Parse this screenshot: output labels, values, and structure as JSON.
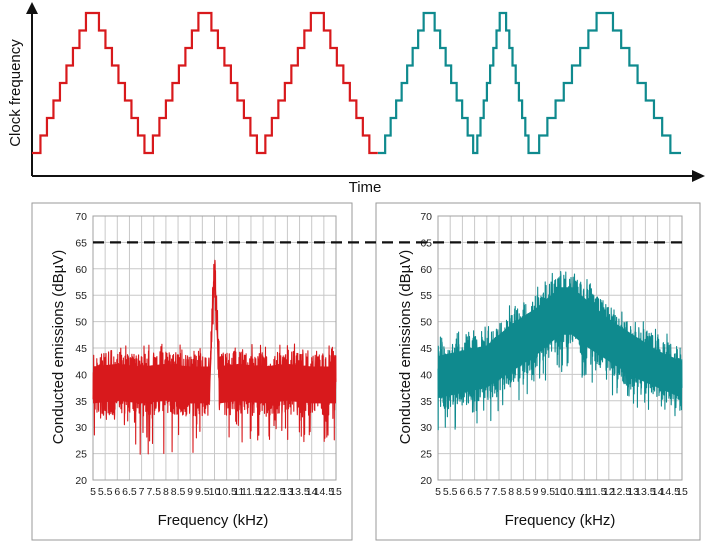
{
  "top_panel": {
    "ylabel": "Clock frequency",
    "xlabel": "Time",
    "fixed_color": "#d8191c",
    "spread_color": "#0f8a8e",
    "axis_color": "#111111"
  },
  "threshold": {
    "value": 65,
    "color": "#111111"
  },
  "chart_data": [
    {
      "type": "line",
      "title": "",
      "xlabel": "Frequency (kHz)",
      "ylabel": "Conducted emissions (dBµV)",
      "xlim": [
        5,
        15
      ],
      "ylim": [
        20,
        70
      ],
      "x_ticks": [
        "5",
        "5.5",
        "6",
        "6.5",
        "7",
        "7.5",
        "8",
        "8.5",
        "9",
        "9.5",
        "10",
        "10.5",
        "11",
        "11.5",
        "12",
        "12.5",
        "13",
        "13.5",
        "14",
        "14.5",
        "15"
      ],
      "y_ticks": [
        "20",
        "25",
        "30",
        "35",
        "40",
        "45",
        "50",
        "55",
        "60",
        "65",
        "70"
      ],
      "grid": true,
      "series": [
        {
          "color": "#d8191c",
          "envelope": {
            "x": [
              5,
              6,
              7,
              8,
              9,
              9.8,
              9.9,
              10,
              10.1,
              10.2,
              11,
              12,
              13,
              14,
              15
            ],
            "upper": [
              44,
              44.5,
              44,
              44.5,
              44,
              44,
              55,
              64.5,
              55,
              44,
              44.5,
              44,
              44.5,
              44,
              44
            ],
            "lower": [
              32,
              32.5,
              32,
              32.5,
              32,
              32,
              44,
              55,
              44,
              32,
              32.5,
              32,
              32.5,
              32,
              32
            ],
            "spike_min": [
              25,
              25,
              24,
              25,
              24,
              32,
              44,
              55,
              44,
              26,
              26,
              26,
              26,
              27,
              27
            ]
          }
        }
      ],
      "reference_line": 65
    },
    {
      "type": "line",
      "title": "",
      "xlabel": "Frequency (kHz)",
      "ylabel": "Conducted emissions (dBµV)",
      "xlim": [
        5,
        15
      ],
      "ylim": [
        20,
        70
      ],
      "x_ticks": [
        "5",
        "5.5",
        "6",
        "6.5",
        "7",
        "7.5",
        "8",
        "8.5",
        "9",
        "9.5",
        "10",
        "10.5",
        "11",
        "11.5",
        "12",
        "12.5",
        "13",
        "13.5",
        "14",
        "14.5",
        "15"
      ],
      "y_ticks": [
        "20",
        "25",
        "30",
        "35",
        "40",
        "45",
        "50",
        "55",
        "60",
        "65",
        "70"
      ],
      "grid": true,
      "series": [
        {
          "color": "#0f8a8e",
          "envelope": {
            "x": [
              5,
              6,
              7,
              8,
              9,
              10,
              10.5,
              11,
              12,
              13,
              14,
              15
            ],
            "upper": [
              46,
              47,
              48,
              52,
              55,
              59,
              59,
              57,
              53,
              50,
              47,
              45
            ],
            "lower": [
              33,
              34,
              35,
              38,
              41,
              45,
              45,
              43,
              40,
              37,
              35,
              33
            ],
            "spike_min": [
              28,
              30,
              30,
              33,
              36,
              40,
              40,
              39,
              36,
              34,
              32,
              31
            ]
          }
        }
      ],
      "reference_line": 65
    }
  ]
}
